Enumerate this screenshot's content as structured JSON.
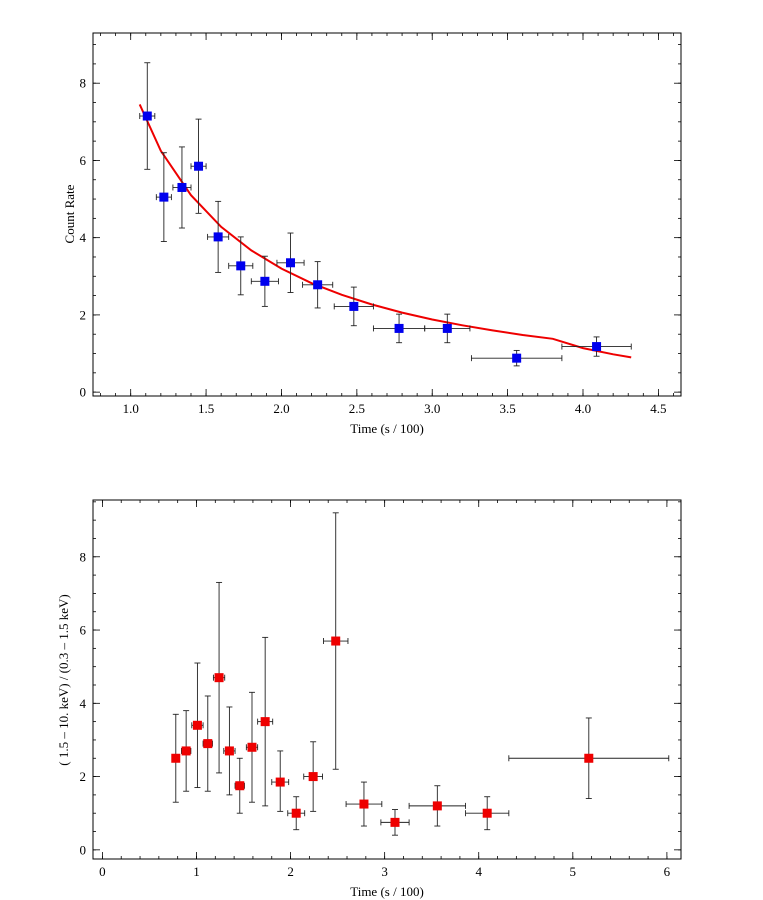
{
  "chart_data": [
    {
      "type": "scatter",
      "xlabel": "Time (s / 100)",
      "ylabel": "Count Rate",
      "xlim": [
        0.75,
        4.65
      ],
      "ylim": [
        -0.1,
        9.3
      ],
      "xticks": [
        1.0,
        1.5,
        2.0,
        2.5,
        3.0,
        3.5,
        4.0,
        4.5
      ],
      "xtick_labels": [
        "1.0",
        "1.5",
        "2.0",
        "2.5",
        "3.0",
        "3.5",
        "4.0",
        "4.5"
      ],
      "yticks": [
        0,
        2,
        4,
        6,
        8
      ],
      "ytick_labels": [
        "0",
        "2",
        "4",
        "6",
        "8"
      ],
      "grid": false,
      "marker_color": "#0000ee",
      "curve_color": "#ee0000",
      "series": [
        {
          "x": [
            1.11,
            1.22,
            1.34,
            1.45,
            1.58,
            1.73,
            1.89,
            2.06,
            2.24,
            2.48,
            2.78,
            3.1,
            3.56,
            4.09
          ],
          "y": [
            7.15,
            5.05,
            5.3,
            5.85,
            4.02,
            3.27,
            2.87,
            3.35,
            2.78,
            2.22,
            1.65,
            1.65,
            0.88,
            1.18
          ],
          "xerr": [
            0.05,
            0.05,
            0.06,
            0.05,
            0.07,
            0.08,
            0.09,
            0.09,
            0.1,
            0.13,
            0.17,
            0.15,
            0.3,
            0.23
          ],
          "yerr": [
            1.38,
            1.15,
            1.05,
            1.22,
            0.92,
            0.75,
            0.65,
            0.77,
            0.6,
            0.5,
            0.37,
            0.37,
            0.2,
            0.25
          ]
        }
      ],
      "fit_curve": {
        "x": [
          1.06,
          1.2,
          1.4,
          1.6,
          1.8,
          2.0,
          2.2,
          2.4,
          2.6,
          2.8,
          3.0,
          3.2,
          3.4,
          3.6,
          3.8,
          4.0,
          4.2,
          4.32
        ],
        "y": [
          7.45,
          6.25,
          5.1,
          4.28,
          3.67,
          3.2,
          2.82,
          2.52,
          2.27,
          2.06,
          1.88,
          1.73,
          1.6,
          1.48,
          1.38,
          1.14,
          0.98,
          0.9
        ]
      }
    },
    {
      "type": "scatter",
      "xlabel": "Time (s / 100)",
      "ylabel": "( 1.5 – 10. keV) / (0.3 – 1.5 keV)",
      "xlim": [
        -0.1,
        6.15
      ],
      "ylim": [
        -0.25,
        9.55
      ],
      "xticks": [
        0,
        1,
        2,
        3,
        4,
        5,
        6
      ],
      "xtick_labels": [
        "0",
        "1",
        "2",
        "3",
        "4",
        "5",
        "6"
      ],
      "yticks": [
        0,
        2,
        4,
        6,
        8
      ],
      "ytick_labels": [
        "0",
        "2",
        "4",
        "6",
        "8"
      ],
      "grid": false,
      "marker_color": "#ee0000",
      "series": [
        {
          "x": [
            0.78,
            0.89,
            1.01,
            1.12,
            1.24,
            1.35,
            1.46,
            1.59,
            1.73,
            1.89,
            2.06,
            2.24,
            2.48,
            2.78,
            3.11,
            3.56,
            4.09,
            5.17
          ],
          "y": [
            2.5,
            2.7,
            3.4,
            2.9,
            4.7,
            2.7,
            1.75,
            2.8,
            3.5,
            1.85,
            1.0,
            2.0,
            5.7,
            1.25,
            0.75,
            1.2,
            1.0,
            2.5
          ],
          "ylo": [
            1.3,
            1.6,
            1.7,
            1.6,
            2.1,
            1.5,
            1.0,
            1.3,
            1.2,
            1.05,
            0.55,
            1.05,
            2.2,
            0.65,
            0.4,
            0.65,
            0.55,
            1.4
          ],
          "yhi": [
            3.7,
            3.8,
            5.1,
            4.2,
            7.3,
            3.9,
            2.5,
            4.3,
            5.8,
            2.7,
            1.45,
            2.95,
            9.2,
            1.85,
            1.1,
            1.75,
            1.45,
            3.6
          ],
          "xerr": [
            0.04,
            0.05,
            0.06,
            0.05,
            0.06,
            0.06,
            0.05,
            0.06,
            0.08,
            0.09,
            0.09,
            0.1,
            0.13,
            0.19,
            0.15,
            0.3,
            0.23,
            0.85
          ]
        }
      ]
    }
  ]
}
